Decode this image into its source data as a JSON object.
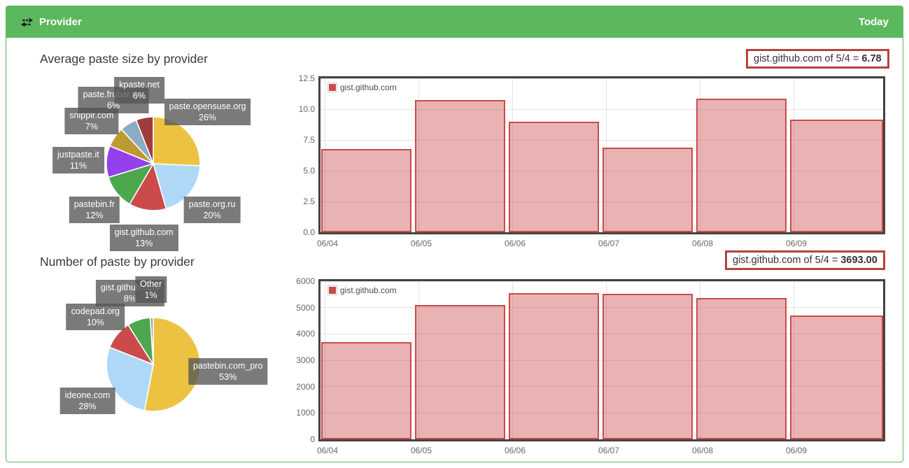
{
  "header": {
    "title": "Provider",
    "right_label": "Today",
    "icon": "exchange-icon",
    "accent_color": "#5cb85c"
  },
  "sections": {
    "pie1_title": "Average paste size by provider",
    "pie2_title": "Number of paste by provider"
  },
  "tooltips": [
    {
      "prefix": "gist.github.com of 5/4 = ",
      "value": "6.78"
    },
    {
      "prefix": "gist.github.com of 5/4 = ",
      "value": "3693.00"
    }
  ],
  "colors": {
    "series_red": "#cb4b4b",
    "bar_fill": "rgba(203,75,75,0.42)",
    "pie_label_bg": "rgba(84,84,84,0.78)",
    "tooltip_border": "#b5433f"
  },
  "chart_data": [
    {
      "id": "pie-average-paste-size",
      "type": "pie",
      "title": "Average paste size by provider",
      "slices": [
        {
          "label": "paste.opensuse.org",
          "percent": 26,
          "color": "#edc240"
        },
        {
          "label": "paste.org.ru",
          "percent": 20,
          "color": "#afd8f8"
        },
        {
          "label": "gist.github.com",
          "percent": 13,
          "color": "#cb4b4b"
        },
        {
          "label": "pastebin.fr",
          "percent": 12,
          "color": "#4da74d"
        },
        {
          "label": "justpaste.it",
          "percent": 11,
          "color": "#9440ed"
        },
        {
          "label": "snipplr.com",
          "percent": 7,
          "color": "#bd9b33"
        },
        {
          "label": "paste.frubar.net",
          "percent": 6,
          "color": "#8cacc6"
        },
        {
          "label": "kpaste.net",
          "percent": 6,
          "color": "#a23c3c"
        }
      ]
    },
    {
      "id": "pie-number-of-paste",
      "type": "pie",
      "title": "Number of paste by provider",
      "slices": [
        {
          "label": "pastebin.com_pro",
          "percent": 53,
          "color": "#edc240"
        },
        {
          "label": "ideone.com",
          "percent": 28,
          "color": "#afd8f8"
        },
        {
          "label": "codepad.org",
          "percent": 10,
          "color": "#cb4b4b"
        },
        {
          "label": "gist.github.com",
          "percent": 8,
          "color": "#4da74d"
        },
        {
          "label": "Other",
          "percent": 1,
          "color": "#9c9c9c"
        }
      ]
    },
    {
      "id": "bar-average-paste-size",
      "type": "bar",
      "legend": "gist.github.com",
      "series_color": "#cb4b4b",
      "categories": [
        "06/04",
        "06/05",
        "06/06",
        "06/07",
        "06/08",
        "06/09"
      ],
      "values": [
        6.78,
        10.72,
        9.0,
        6.85,
        10.85,
        9.15
      ],
      "ylim": [
        0,
        12.5
      ],
      "yticks": [
        "0.0",
        "2.5",
        "5.0",
        "7.5",
        "10.0",
        "12.5"
      ],
      "grid": true,
      "legend_position": "top-left"
    },
    {
      "id": "bar-number-of-paste",
      "type": "bar",
      "legend": "gist.github.com",
      "series_color": "#cb4b4b",
      "categories": [
        "06/04",
        "06/05",
        "06/06",
        "06/07",
        "06/08",
        "06/09"
      ],
      "values": [
        3693,
        5100,
        5560,
        5520,
        5370,
        4690
      ],
      "ylim": [
        0,
        6000
      ],
      "yticks": [
        "0",
        "1000",
        "2000",
        "3000",
        "4000",
        "5000",
        "6000"
      ],
      "grid": true,
      "legend_position": "top-left"
    }
  ]
}
